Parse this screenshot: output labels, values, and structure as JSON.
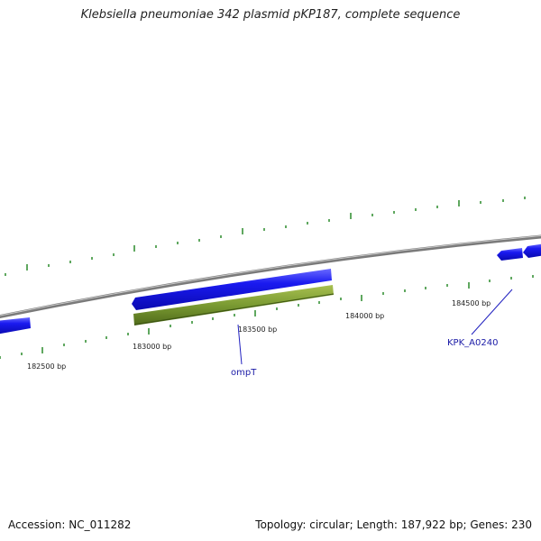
{
  "title": "Klebsiella pneumoniae 342 plasmid pKP187, complete sequence",
  "footer": {
    "accession": "Accession: NC_011282",
    "summary": "Topology: circular; Length: 187,922 bp; Genes: 230"
  },
  "colors": {
    "backbone": "#8c8c8c",
    "forward_gene": "#1414e6",
    "feature": "#6f8f2a",
    "tick": "#2a8a2a",
    "label_line": "#2020c0",
    "label_text": "#1a1aa6"
  },
  "bp_labels": [
    "182500 bp",
    "183000 bp",
    "183500 bp",
    "184000 bp",
    "184500 bp"
  ],
  "gene_labels": [
    "ompT",
    "KPK_A0240"
  ]
}
